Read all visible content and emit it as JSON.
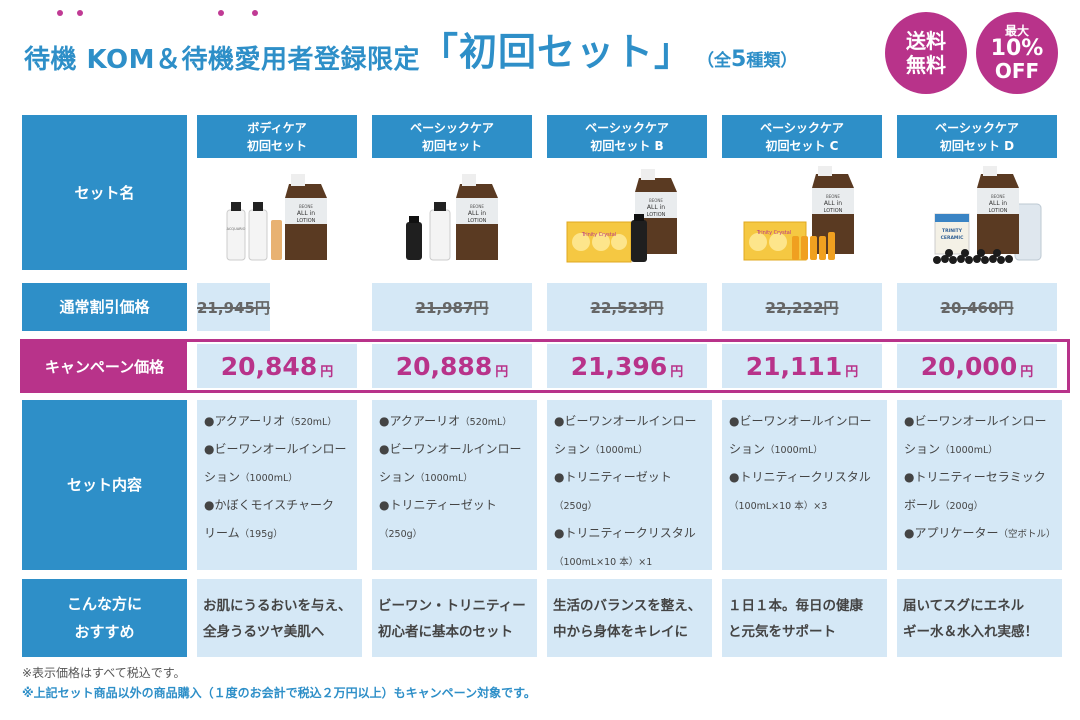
{
  "title": {
    "lead": "待機 KOM＆待機愛用者登録限定",
    "main": "「初回セット」",
    "sub_open": "（全",
    "sub_num": "5",
    "sub_close": "種類）"
  },
  "badges": {
    "free_line1": "送料",
    "free_line2": "無料",
    "off_line1": "最大",
    "off_line2": "10%",
    "off_line3": "OFF"
  },
  "row_labels": {
    "set_name": "セット名",
    "regular": "通常割引価格",
    "campaign": "キャンペーン価格",
    "contents": "セット内容",
    "recommend_1": "こんな方に",
    "recommend_2": "おすすめ"
  },
  "colors": {
    "blue": "#2e8fc8",
    "magenta": "#b8338a",
    "cell": "#d5e8f6"
  },
  "sets": [
    {
      "name_1": "ボディケア",
      "name_2": "初回セット",
      "regular": "21,945円",
      "campaign": "20,848",
      "yen": "円",
      "items": [
        {
          "text": "●アクアーリオ",
          "note": "（520mL）"
        },
        {
          "text": "●ビーワンオールインロー",
          "note": ""
        },
        {
          "text": "ション",
          "note": "（1000mL）"
        },
        {
          "text": "●かぼくモイスチャーク",
          "note": ""
        },
        {
          "text": "リーム",
          "note": "（195g）"
        }
      ],
      "rec_1": "お肌にうるおいを与え、",
      "rec_2": "全身うるツヤ美肌へ"
    },
    {
      "name_1": "ベーシックケア",
      "name_2": "初回セット",
      "regular": "21,987円",
      "campaign": "20,888",
      "yen": "円",
      "items": [
        {
          "text": "●アクアーリオ",
          "note": "（520mL）"
        },
        {
          "text": "●ビーワンオールインロー",
          "note": ""
        },
        {
          "text": "ション",
          "note": "（1000mL）"
        },
        {
          "text": "●トリニティーゼット",
          "note": ""
        },
        {
          "text": "",
          "note": "（250g）"
        }
      ],
      "rec_1": "ビーワン・トリニティー",
      "rec_2": "初心者に基本のセット"
    },
    {
      "name_1": "ベーシックケア",
      "name_2": "初回セット B",
      "regular": "22,523円",
      "campaign": "21,396",
      "yen": "円",
      "items": [
        {
          "text": "●ビーワンオールインロー",
          "note": ""
        },
        {
          "text": "ション",
          "note": "（1000mL）"
        },
        {
          "text": "●トリニティーゼット",
          "note": ""
        },
        {
          "text": "",
          "note": "（250g）"
        },
        {
          "text": "●トリニティークリスタル",
          "note": ""
        },
        {
          "text": "",
          "note": "（100mL×10 本）×1"
        }
      ],
      "rec_1": "生活のバランスを整え、",
      "rec_2": "中から身体をキレイに"
    },
    {
      "name_1": "ベーシックケア",
      "name_2": "初回セット C",
      "regular": "22,222円",
      "campaign": "21,111",
      "yen": "円",
      "items": [
        {
          "text": "●ビーワンオールインロー",
          "note": ""
        },
        {
          "text": "ション",
          "note": "（1000mL）"
        },
        {
          "text": "●トリニティークリスタル",
          "note": ""
        },
        {
          "text": "",
          "note": "（100mL×10 本）×3"
        }
      ],
      "rec_1": "１日１本。毎日の健康",
      "rec_2": "と元気をサポート"
    },
    {
      "name_1": "ベーシックケア",
      "name_2": "初回セット D",
      "regular": "20,460円",
      "campaign": "20,000",
      "yen": "円",
      "items": [
        {
          "text": "●ビーワンオールインロー",
          "note": ""
        },
        {
          "text": "ション",
          "note": "（1000mL）"
        },
        {
          "text": "●トリニティーセラミック",
          "note": ""
        },
        {
          "text": "ボール",
          "note": "（200g）"
        },
        {
          "text": "●アプリケーター",
          "note": "（空ボトル）"
        }
      ],
      "rec_1": "届いてスグにエネル",
      "rec_2": "ギー水＆水入れ実感！"
    }
  ],
  "product_labels": {
    "pouch_1": "BEONE",
    "pouch_2": "ALL in",
    "pouch_3": "LOTION",
    "bottle": "ACQUARIO",
    "box": "Trinity Crystal",
    "ceramic_1": "TRINITY",
    "ceramic_2": "CERAMIC"
  },
  "notes": {
    "line1": "※表示価格はすべて税込です。",
    "line2": "※上記セット商品以外の商品購入（１度のお会計で税込２万円以上）もキャンペーン対象です。"
  }
}
